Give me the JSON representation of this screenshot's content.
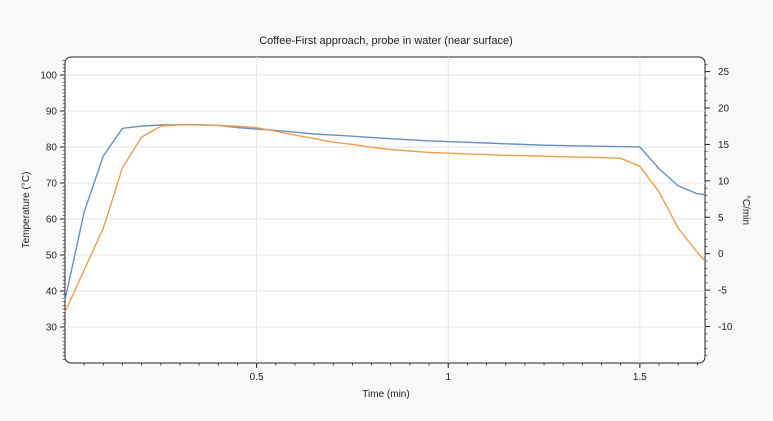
{
  "chart_data": {
    "type": "line",
    "title": "Coffee-First approach, probe in water (near surface)",
    "xlabel": "Time (min)",
    "ylabel": "Temperature (°C)",
    "y2label": "°C/min",
    "xlim": [
      0,
      1.67
    ],
    "ylim": [
      20,
      105
    ],
    "y2lim": [
      -15,
      27
    ],
    "x_ticks": [
      0.5,
      1,
      1.5
    ],
    "y_ticks": [
      30,
      40,
      50,
      60,
      70,
      80,
      90,
      100
    ],
    "y2_ticks": [
      -10,
      -5,
      0,
      5,
      10,
      15,
      20,
      25
    ],
    "grid": true,
    "series": [
      {
        "axis": "left",
        "color": "#6a8fbf",
        "x": [
          0,
          0.05,
          0.1,
          0.15,
          0.2,
          0.25,
          0.3,
          0.35,
          0.4,
          0.45,
          0.5,
          0.55,
          0.6,
          0.65,
          0.7,
          0.75,
          0.8,
          0.85,
          0.9,
          0.95,
          1.0,
          1.05,
          1.1,
          1.15,
          1.2,
          1.25,
          1.3,
          1.35,
          1.4,
          1.45,
          1.5,
          1.55,
          1.6,
          1.65,
          1.67
        ],
        "values": [
          37.5,
          62,
          77.5,
          85.2,
          85.8,
          86.1,
          86.2,
          86.2,
          86.0,
          85.4,
          85.0,
          84.6,
          84.1,
          83.6,
          83.3,
          83.0,
          82.6,
          82.3,
          82.0,
          81.7,
          81.5,
          81.3,
          81.1,
          80.9,
          80.7,
          80.5,
          80.4,
          80.3,
          80.2,
          80.1,
          80.0,
          74.0,
          69.2,
          67.0,
          66.8
        ]
      },
      {
        "axis": "right",
        "color": "#e8a04c",
        "x": [
          0,
          0.1,
          0.15,
          0.2,
          0.25,
          0.3,
          0.35,
          0.4,
          0.45,
          0.5,
          0.55,
          0.6,
          0.65,
          0.7,
          0.75,
          0.8,
          0.85,
          0.9,
          0.95,
          1.0,
          1.05,
          1.1,
          1.15,
          1.2,
          1.25,
          1.3,
          1.35,
          1.4,
          1.45,
          1.5,
          1.55,
          1.6,
          1.65,
          1.67
        ],
        "values": [
          -8,
          3.5,
          11.8,
          16.0,
          17.5,
          17.7,
          17.65,
          17.6,
          17.5,
          17.3,
          16.8,
          16.3,
          15.8,
          15.3,
          15.0,
          14.6,
          14.3,
          14.1,
          13.9,
          13.8,
          13.7,
          13.6,
          13.5,
          13.45,
          13.4,
          13.3,
          13.25,
          13.2,
          13.1,
          12.0,
          8.5,
          3.5,
          0.2,
          -1.0
        ]
      }
    ]
  }
}
